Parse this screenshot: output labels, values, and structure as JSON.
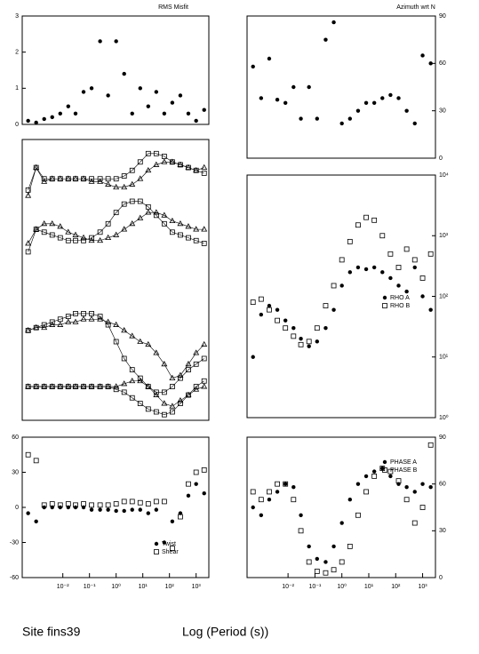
{
  "chart_data": [
    {
      "type": "scatter",
      "title": "RMS Misfit",
      "xlog": true,
      "xlim": [
        0.0003,
        3000
      ],
      "x": [
        0.0005,
        0.001,
        0.002,
        0.004,
        0.008,
        0.016,
        0.03,
        0.06,
        0.12,
        0.25,
        0.5,
        1,
        2,
        4,
        8,
        16,
        32,
        64,
        128,
        256,
        512,
        1000,
        2000
      ],
      "ylim": [
        0,
        3
      ],
      "yticks": [
        0,
        1,
        2,
        3
      ],
      "ytick_side": "left",
      "series": [
        {
          "color": "#000000",
          "marker": "circle",
          "values": [
            0.1,
            0.05,
            0.15,
            0.2,
            0.3,
            0.5,
            0.3,
            0.9,
            1.0,
            2.3,
            0.8,
            2.3,
            1.4,
            0.3,
            1.0,
            0.5,
            0.9,
            0.3,
            0.6,
            0.8,
            0.3,
            0.1,
            0.4
          ]
        }
      ]
    },
    {
      "type": "scatter",
      "title": "Azimuth wrt N",
      "xlog": true,
      "xlim": [
        0.0003,
        3000
      ],
      "x": [
        0.0005,
        0.001,
        0.002,
        0.004,
        0.008,
        0.016,
        0.03,
        0.06,
        0.12,
        0.25,
        0.5,
        1,
        2,
        4,
        8,
        16,
        32,
        64,
        128,
        256,
        512,
        1000,
        2000
      ],
      "ylim": [
        0,
        90
      ],
      "yticks": [
        0,
        30,
        60,
        90
      ],
      "ytick_side": "right",
      "series": [
        {
          "color": "#000000",
          "marker": "circle",
          "values": [
            58,
            38,
            63,
            37,
            35,
            45,
            25,
            45,
            25,
            75,
            86,
            22,
            25,
            30,
            35,
            35,
            38,
            40,
            38,
            30,
            22,
            65,
            60
          ]
        }
      ]
    },
    {
      "type": "line",
      "xlog": true,
      "xlim": [
        0.0003,
        3000
      ],
      "x": [
        0.0005,
        0.001,
        0.002,
        0.004,
        0.008,
        0.016,
        0.03,
        0.06,
        0.12,
        0.25,
        0.5,
        1,
        2,
        4,
        8,
        16,
        32,
        64,
        128,
        256,
        512,
        1000,
        2000
      ],
      "ylim": [
        0,
        1
      ],
      "series": [
        {
          "color": "#000000",
          "marker": "square",
          "values": [
            0.82,
            0.9,
            0.86,
            0.86,
            0.86,
            0.86,
            0.86,
            0.86,
            0.86,
            0.86,
            0.86,
            0.86,
            0.87,
            0.89,
            0.92,
            0.95,
            0.95,
            0.94,
            0.92,
            0.91,
            0.9,
            0.89,
            0.88
          ]
        },
        {
          "color": "#000000",
          "marker": "triangle",
          "values": [
            0.8,
            0.9,
            0.85,
            0.86,
            0.86,
            0.86,
            0.86,
            0.86,
            0.85,
            0.85,
            0.84,
            0.83,
            0.83,
            0.84,
            0.86,
            0.89,
            0.91,
            0.92,
            0.92,
            0.91,
            0.9,
            0.89,
            0.9
          ]
        },
        {
          "color": "#000000",
          "marker": "square",
          "values": [
            0.6,
            0.68,
            0.67,
            0.66,
            0.65,
            0.64,
            0.64,
            0.64,
            0.65,
            0.67,
            0.7,
            0.74,
            0.77,
            0.78,
            0.78,
            0.76,
            0.73,
            0.7,
            0.67,
            0.66,
            0.65,
            0.64,
            0.63
          ]
        },
        {
          "color": "#000000",
          "marker": "triangle",
          "values": [
            0.63,
            0.68,
            0.7,
            0.7,
            0.69,
            0.67,
            0.66,
            0.65,
            0.64,
            0.64,
            0.65,
            0.66,
            0.68,
            0.7,
            0.72,
            0.74,
            0.74,
            0.73,
            0.71,
            0.7,
            0.69,
            0.68,
            0.68
          ]
        },
        {
          "color": "#000000",
          "marker": "square",
          "values": [
            0.32,
            0.33,
            0.34,
            0.35,
            0.36,
            0.37,
            0.38,
            0.38,
            0.38,
            0.37,
            0.34,
            0.28,
            0.22,
            0.18,
            0.15,
            0.12,
            0.1,
            0.1,
            0.12,
            0.15,
            0.18,
            0.2,
            0.22
          ]
        },
        {
          "color": "#000000",
          "marker": "triangle",
          "values": [
            0.32,
            0.33,
            0.33,
            0.34,
            0.34,
            0.35,
            0.35,
            0.36,
            0.36,
            0.36,
            0.35,
            0.34,
            0.32,
            0.3,
            0.28,
            0.27,
            0.24,
            0.2,
            0.15,
            0.16,
            0.2,
            0.24,
            0.27
          ]
        },
        {
          "color": "#000000",
          "marker": "square",
          "values": [
            0.12,
            0.12,
            0.12,
            0.12,
            0.12,
            0.12,
            0.12,
            0.12,
            0.12,
            0.12,
            0.12,
            0.11,
            0.1,
            0.08,
            0.06,
            0.04,
            0.03,
            0.02,
            0.03,
            0.06,
            0.09,
            0.12,
            0.14
          ]
        },
        {
          "color": "#000000",
          "marker": "triangle",
          "values": [
            0.12,
            0.12,
            0.12,
            0.12,
            0.12,
            0.12,
            0.12,
            0.12,
            0.12,
            0.12,
            0.12,
            0.12,
            0.13,
            0.14,
            0.14,
            0.12,
            0.09,
            0.06,
            0.05,
            0.07,
            0.09,
            0.11,
            0.12
          ]
        }
      ]
    },
    {
      "type": "scatter",
      "xlog": true,
      "xlim": [
        0.0003,
        3000
      ],
      "ylog": true,
      "x": [
        0.0005,
        0.001,
        0.002,
        0.004,
        0.008,
        0.016,
        0.03,
        0.06,
        0.12,
        0.25,
        0.5,
        1,
        2,
        4,
        8,
        16,
        32,
        64,
        128,
        256,
        512,
        1000,
        2000
      ],
      "ylim": [
        1,
        10000
      ],
      "ytick_side": "right",
      "yticks": [
        {
          "value": 1,
          "label": "10⁰"
        },
        {
          "value": 10,
          "label": "10¹"
        },
        {
          "value": 100,
          "label": "10²"
        },
        {
          "value": 1000,
          "label": "10³"
        },
        {
          "value": 10000,
          "label": "10⁴"
        }
      ],
      "series": [
        {
          "name": "RHO A",
          "color": "#000000",
          "marker": "circle",
          "values": [
            10,
            50,
            70,
            60,
            40,
            30,
            20,
            15,
            18,
            30,
            60,
            150,
            250,
            300,
            280,
            300,
            250,
            200,
            150,
            120,
            300,
            100,
            60
          ]
        },
        {
          "name": "RHO B",
          "color": "#000000",
          "marker": "square",
          "values": [
            80,
            90,
            60,
            40,
            30,
            22,
            16,
            18,
            30,
            70,
            150,
            400,
            800,
            1500,
            2000,
            1800,
            1000,
            500,
            300,
            600,
            400,
            200,
            500
          ]
        }
      ]
    },
    {
      "type": "scatter",
      "xlog": true,
      "xlim": [
        0.0003,
        3000
      ],
      "x": [
        0.0005,
        0.001,
        0.002,
        0.004,
        0.008,
        0.016,
        0.03,
        0.06,
        0.12,
        0.25,
        0.5,
        1,
        2,
        4,
        8,
        16,
        32,
        64,
        128,
        256,
        512,
        1000,
        2000
      ],
      "xticks": [
        {
          "value": 0.01,
          "label": "10⁻²"
        },
        {
          "value": 0.1,
          "label": "10⁻¹"
        },
        {
          "value": 1,
          "label": "10⁰"
        },
        {
          "value": 10,
          "label": "10¹"
        },
        {
          "value": 100,
          "label": "10²"
        },
        {
          "value": 1000,
          "label": "10³"
        }
      ],
      "ylim": [
        -60,
        60
      ],
      "yticks": [
        -60,
        -30,
        0,
        30,
        60
      ],
      "ytick_side": "left",
      "series": [
        {
          "name": "Twist",
          "color": "#000000",
          "marker": "circle",
          "values": [
            -5,
            -12,
            0,
            0,
            0,
            0,
            0,
            0,
            -2,
            -2,
            -2,
            -3,
            -3,
            -2,
            -2,
            -5,
            -2,
            -30,
            -12,
            -5,
            10,
            20,
            12
          ]
        },
        {
          "name": "Shear",
          "color": "#000000",
          "marker": "square",
          "values": [
            45,
            40,
            2,
            3,
            2,
            3,
            2,
            3,
            2,
            2,
            2,
            3,
            5,
            5,
            4,
            3,
            5,
            5,
            -35,
            -8,
            20,
            30,
            32
          ]
        }
      ]
    },
    {
      "type": "scatter",
      "xlog": true,
      "xlim": [
        0.0003,
        3000
      ],
      "x": [
        0.0005,
        0.001,
        0.002,
        0.004,
        0.008,
        0.016,
        0.03,
        0.06,
        0.12,
        0.25,
        0.5,
        1,
        2,
        4,
        8,
        16,
        32,
        64,
        128,
        256,
        512,
        1000,
        2000
      ],
      "xticks": [
        {
          "value": 0.01,
          "label": "10⁻²"
        },
        {
          "value": 0.1,
          "label": "10⁻¹"
        },
        {
          "value": 1,
          "label": "10⁰"
        },
        {
          "value": 10,
          "label": "10¹"
        },
        {
          "value": 100,
          "label": "10²"
        },
        {
          "value": 1000,
          "label": "10³"
        }
      ],
      "ylim": [
        0,
        90
      ],
      "yticks": [
        0,
        30,
        60,
        90
      ],
      "ytick_side": "right",
      "series": [
        {
          "name": "PHASE A",
          "color": "#000000",
          "marker": "circle",
          "values": [
            45,
            40,
            50,
            55,
            60,
            58,
            40,
            20,
            12,
            10,
            20,
            35,
            50,
            60,
            65,
            68,
            70,
            65,
            60,
            58,
            55,
            60,
            58
          ]
        },
        {
          "name": "PHASE B",
          "color": "#000000",
          "marker": "square",
          "values": [
            55,
            50,
            55,
            60,
            60,
            50,
            30,
            10,
            4,
            3,
            5,
            10,
            20,
            40,
            55,
            65,
            70,
            68,
            62,
            50,
            35,
            45,
            85
          ]
        }
      ]
    }
  ],
  "footer": {
    "site": "Site fins39",
    "x_label": "Log (Period (s))"
  }
}
